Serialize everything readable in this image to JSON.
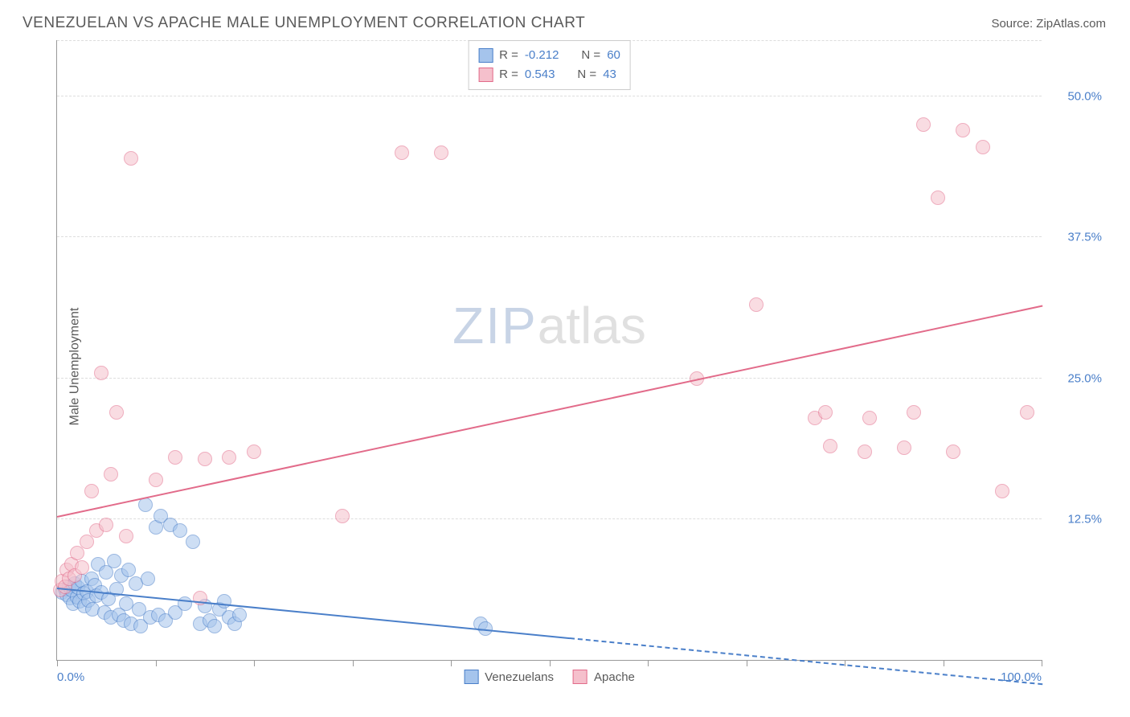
{
  "title": "VENEZUELAN VS APACHE MALE UNEMPLOYMENT CORRELATION CHART",
  "source": "Source: ZipAtlas.com",
  "y_axis_label": "Male Unemployment",
  "watermark_zip": "ZIP",
  "watermark_atlas": "atlas",
  "chart": {
    "type": "scatter",
    "background_color": "#ffffff",
    "xlim": [
      0,
      100
    ],
    "ylim": [
      0,
      55
    ],
    "x_ticks": [
      0,
      10,
      20,
      30,
      40,
      50,
      60,
      70,
      80,
      90,
      100
    ],
    "x_tick_labels": {
      "0": "0.0%",
      "100": "100.0%"
    },
    "y_ticks": [
      12.5,
      25.0,
      37.5,
      50.0
    ],
    "y_tick_labels": [
      "12.5%",
      "25.0%",
      "37.5%",
      "50.0%"
    ],
    "grid_color": "#dddddd",
    "axis_color": "#999999",
    "marker_radius": 9,
    "marker_opacity": 0.55,
    "series": [
      {
        "name": "Venezuelans",
        "color_fill": "#a5c4ec",
        "color_stroke": "#4a7fc9",
        "r": "-0.212",
        "n": "60",
        "trend": {
          "x1": 0,
          "y1": 6.5,
          "x2": 100,
          "y2": -2.0,
          "solid_until_x": 52
        },
        "points": [
          [
            0.5,
            6.0
          ],
          [
            0.8,
            6.3
          ],
          [
            1.0,
            5.8
          ],
          [
            1.2,
            6.5
          ],
          [
            1.3,
            5.5
          ],
          [
            1.5,
            6.2
          ],
          [
            1.6,
            5.0
          ],
          [
            1.8,
            6.8
          ],
          [
            2.0,
            5.6
          ],
          [
            2.1,
            6.4
          ],
          [
            2.3,
            5.2
          ],
          [
            2.5,
            7.0
          ],
          [
            2.7,
            5.9
          ],
          [
            2.8,
            4.8
          ],
          [
            3.0,
            6.1
          ],
          [
            3.2,
            5.3
          ],
          [
            3.5,
            7.2
          ],
          [
            3.6,
            4.5
          ],
          [
            3.8,
            6.6
          ],
          [
            4.0,
            5.7
          ],
          [
            4.2,
            8.5
          ],
          [
            4.5,
            6.0
          ],
          [
            4.8,
            4.2
          ],
          [
            5.0,
            7.8
          ],
          [
            5.2,
            5.4
          ],
          [
            5.5,
            3.8
          ],
          [
            5.8,
            8.8
          ],
          [
            6.0,
            6.3
          ],
          [
            6.3,
            4.0
          ],
          [
            6.5,
            7.5
          ],
          [
            6.8,
            3.5
          ],
          [
            7.0,
            5.0
          ],
          [
            7.3,
            8.0
          ],
          [
            7.5,
            3.2
          ],
          [
            8.0,
            6.8
          ],
          [
            8.3,
            4.5
          ],
          [
            8.5,
            3.0
          ],
          [
            9.0,
            13.8
          ],
          [
            9.2,
            7.2
          ],
          [
            9.5,
            3.8
          ],
          [
            10.0,
            11.8
          ],
          [
            10.3,
            4.0
          ],
          [
            10.5,
            12.8
          ],
          [
            11.0,
            3.5
          ],
          [
            11.5,
            12.0
          ],
          [
            12.0,
            4.2
          ],
          [
            12.5,
            11.5
          ],
          [
            13.0,
            5.0
          ],
          [
            13.8,
            10.5
          ],
          [
            14.5,
            3.2
          ],
          [
            15.0,
            4.8
          ],
          [
            15.5,
            3.5
          ],
          [
            16.0,
            3.0
          ],
          [
            16.5,
            4.5
          ],
          [
            17.0,
            5.2
          ],
          [
            17.5,
            3.8
          ],
          [
            18.0,
            3.2
          ],
          [
            18.5,
            4.0
          ],
          [
            43.0,
            3.2
          ],
          [
            43.5,
            2.8
          ]
        ]
      },
      {
        "name": "Apache",
        "color_fill": "#f5c0cc",
        "color_stroke": "#e26b8a",
        "r": "0.543",
        "n": "43",
        "trend": {
          "x1": 0,
          "y1": 12.8,
          "x2": 100,
          "y2": 31.5,
          "solid_until_x": 100
        },
        "points": [
          [
            0.3,
            6.2
          ],
          [
            0.5,
            7.0
          ],
          [
            0.8,
            6.5
          ],
          [
            1.0,
            8.0
          ],
          [
            1.2,
            7.2
          ],
          [
            1.5,
            8.5
          ],
          [
            1.8,
            7.5
          ],
          [
            2.0,
            9.5
          ],
          [
            2.5,
            8.2
          ],
          [
            3.0,
            10.5
          ],
          [
            3.5,
            15.0
          ],
          [
            4.0,
            11.5
          ],
          [
            4.5,
            25.5
          ],
          [
            5.0,
            12.0
          ],
          [
            5.5,
            16.5
          ],
          [
            6.0,
            22.0
          ],
          [
            7.0,
            11.0
          ],
          [
            7.5,
            44.5
          ],
          [
            10.0,
            16.0
          ],
          [
            12.0,
            18.0
          ],
          [
            14.5,
            5.5
          ],
          [
            15.0,
            17.8
          ],
          [
            17.5,
            18.0
          ],
          [
            20.0,
            18.5
          ],
          [
            29.0,
            12.8
          ],
          [
            35.0,
            45.0
          ],
          [
            39.0,
            45.0
          ],
          [
            65.0,
            25.0
          ],
          [
            71.0,
            31.5
          ],
          [
            77.0,
            21.5
          ],
          [
            78.5,
            19.0
          ],
          [
            78.0,
            22.0
          ],
          [
            82.0,
            18.5
          ],
          [
            82.5,
            21.5
          ],
          [
            86.0,
            18.8
          ],
          [
            87.0,
            22.0
          ],
          [
            88.0,
            47.5
          ],
          [
            89.5,
            41.0
          ],
          [
            91.0,
            18.5
          ],
          [
            92.0,
            47.0
          ],
          [
            94.0,
            45.5
          ],
          [
            96.0,
            15.0
          ],
          [
            98.5,
            22.0
          ]
        ]
      }
    ]
  },
  "legend_r_label": "R =",
  "legend_n_label": "N ="
}
